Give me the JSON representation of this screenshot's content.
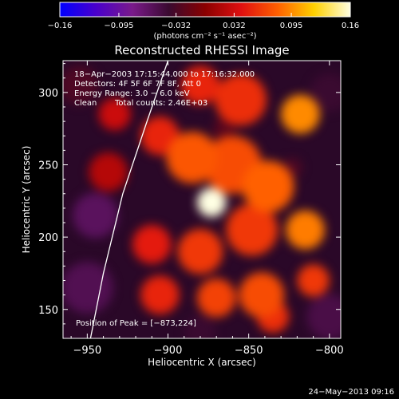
{
  "chart_data": {
    "type": "heatmap",
    "title": "Reconstructed RHESSI Image",
    "xlabel": "Heliocentric X (arcsec)",
    "ylabel": "Heliocentric Y (arcsec)",
    "xlim": [
      -965,
      -793
    ],
    "ylim": [
      130,
      322
    ],
    "xticks": [
      -950,
      -900,
      -850,
      -800
    ],
    "yticks": [
      150,
      200,
      250,
      300
    ],
    "xtick_labels": [
      "−950",
      "−900",
      "−850",
      "−800"
    ],
    "ytick_labels": [
      "150",
      "200",
      "250",
      "300"
    ],
    "colorbar": {
      "range": [
        -0.16,
        0.16
      ],
      "ticks": [
        -0.16,
        -0.095,
        -0.032,
        0.032,
        0.095,
        0.16
      ],
      "tick_labels": [
        "−0.16",
        "−0.095",
        "−0.032",
        "0.032",
        "0.095",
        "0.16"
      ],
      "units": "(photons cm⁻² s⁻¹ asec⁻²)",
      "stops": [
        "#0000ff",
        "#4a00cc",
        "#7a1a8a",
        "#3a0a30",
        "#8a0000",
        "#e01010",
        "#ff6000",
        "#ffd000",
        "#ffffe0"
      ]
    },
    "annotations": {
      "time_range": "18−Apr−2003 17:15:44.000 to 17:16:32.000",
      "detectors": "Detectors: 4F 5F 6F 7F 8F, Att 0",
      "energy_range": "Energy Range: 3.0 − 6.0 keV",
      "clean": "Clean",
      "total_counts": "Total counts: 2.46E+03",
      "peak_position": "Position of Peak = [−873,224]"
    },
    "peak": {
      "x": -873,
      "y": 224
    },
    "limb_curve": [
      [
        -948,
        130
      ],
      [
        -940,
        175
      ],
      [
        -928,
        230
      ],
      [
        -913,
        280
      ],
      [
        -900,
        322
      ]
    ],
    "blobs": [
      {
        "x": -873,
        "y": 224,
        "r": 9,
        "v": 0.16
      },
      {
        "x": -885,
        "y": 255,
        "r": 16,
        "v": 0.075
      },
      {
        "x": -860,
        "y": 250,
        "r": 18,
        "v": 0.07
      },
      {
        "x": -838,
        "y": 235,
        "r": 16,
        "v": 0.08
      },
      {
        "x": -818,
        "y": 285,
        "r": 12,
        "v": 0.095
      },
      {
        "x": -855,
        "y": 295,
        "r": 16,
        "v": 0.055
      },
      {
        "x": -880,
        "y": 305,
        "r": 12,
        "v": 0.05
      },
      {
        "x": -905,
        "y": 270,
        "r": 12,
        "v": 0.05
      },
      {
        "x": -815,
        "y": 205,
        "r": 12,
        "v": 0.09
      },
      {
        "x": -848,
        "y": 205,
        "r": 16,
        "v": 0.06
      },
      {
        "x": -880,
        "y": 190,
        "r": 14,
        "v": 0.06
      },
      {
        "x": -910,
        "y": 195,
        "r": 12,
        "v": 0.045
      },
      {
        "x": -905,
        "y": 160,
        "r": 12,
        "v": 0.05
      },
      {
        "x": -870,
        "y": 158,
        "r": 12,
        "v": 0.065
      },
      {
        "x": -842,
        "y": 160,
        "r": 14,
        "v": 0.07
      },
      {
        "x": -810,
        "y": 170,
        "r": 10,
        "v": 0.06
      },
      {
        "x": -835,
        "y": 145,
        "r": 10,
        "v": 0.055
      },
      {
        "x": -937,
        "y": 245,
        "r": 12,
        "v": 0.02
      },
      {
        "x": -933,
        "y": 285,
        "r": 10,
        "v": 0.03
      },
      {
        "x": -945,
        "y": 215,
        "r": 14,
        "v": -0.06
      },
      {
        "x": -950,
        "y": 165,
        "r": 16,
        "v": -0.055
      },
      {
        "x": -800,
        "y": 145,
        "r": 14,
        "v": -0.05
      },
      {
        "x": -800,
        "y": 300,
        "r": 12,
        "v": -0.04
      },
      {
        "x": -880,
        "y": 135,
        "r": 10,
        "v": -0.04
      },
      {
        "x": -955,
        "y": 305,
        "r": 12,
        "v": -0.03
      },
      {
        "x": -823,
        "y": 248,
        "r": 6,
        "v": -0.03
      },
      {
        "x": -865,
        "y": 275,
        "r": 7,
        "v": -0.025
      }
    ]
  },
  "footer": {
    "date": "24−May−2013 09:16"
  }
}
